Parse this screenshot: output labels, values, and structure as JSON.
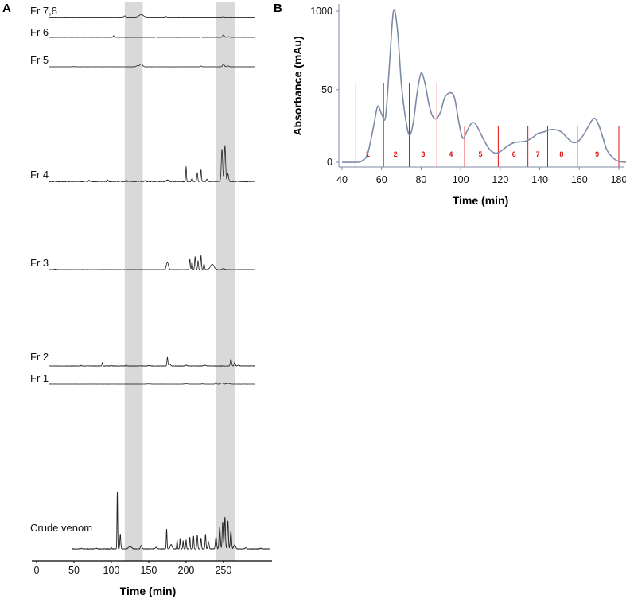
{
  "panels": {
    "a": {
      "letter": "A"
    },
    "b": {
      "letter": "B"
    }
  },
  "chart_data": [
    {
      "type": "line",
      "panel": "A",
      "xlabel": "Time (min)",
      "ylabel": "",
      "xlim": [
        0,
        315
      ],
      "xticks": [
        0,
        50,
        100,
        150,
        200,
        250
      ],
      "highlight_bands": [
        [
          118,
          142
        ],
        [
          240,
          265
        ]
      ],
      "series": [
        {
          "name": "Fr 7,8",
          "baseline": 0.5,
          "noise": 0.12,
          "peaks": [
            [
              118,
              1.5,
              1.2
            ],
            [
              140,
              3.0,
              3.0
            ],
            [
              173,
              0.8,
              1.0
            ],
            [
              250,
              0.6,
              1.0
            ]
          ]
        },
        {
          "name": "Fr 6",
          "baseline": 0,
          "noise": 0.1,
          "peaks": [
            [
              103,
              2.2,
              0.6
            ],
            [
              160,
              0.4,
              1.0
            ],
            [
              220,
              0.4,
              1.0
            ],
            [
              250,
              3.0,
              1.2
            ],
            [
              257,
              1.0,
              1.2
            ]
          ]
        },
        {
          "name": "Fr 5",
          "baseline": 0,
          "noise": 0.1,
          "peaks": [
            [
              50,
              0.3,
              1.2
            ],
            [
              135,
              1.5,
              1.5
            ],
            [
              140,
              3.5,
              1.8
            ],
            [
              220,
              1.0,
              0.8
            ],
            [
              250,
              3.2,
              1.2
            ],
            [
              256,
              1.2,
              1.2
            ]
          ]
        },
        {
          "name": "Fr 4",
          "baseline": 0,
          "noise": 0.45,
          "peaks": [
            [
              70,
              1.0,
              0.6
            ],
            [
              95,
              1.2,
              0.6
            ],
            [
              120,
              1.2,
              0.6
            ],
            [
              145,
              0.8,
              0.6
            ],
            [
              175,
              1.0,
              1.5
            ],
            [
              200,
              11.5,
              0.5
            ],
            [
              208,
              2.5,
              0.7
            ],
            [
              215,
              7.0,
              0.6
            ],
            [
              220,
              9.0,
              0.6
            ],
            [
              228,
              1.5,
              0.8
            ],
            [
              248,
              25.0,
              0.9
            ],
            [
              252,
              28.0,
              0.9
            ],
            [
              256,
              6.0,
              0.9
            ]
          ]
        },
        {
          "name": "Fr 3",
          "baseline": 0,
          "noise": 0.12,
          "peaks": [
            [
              25,
              0.4,
              1.5
            ],
            [
              175,
              6.5,
              1.3
            ],
            [
              205,
              9.0,
              0.6
            ],
            [
              208,
              7.0,
              0.6
            ],
            [
              212,
              11.0,
              0.6
            ],
            [
              216,
              7.5,
              0.6
            ],
            [
              220,
              12.0,
              0.6
            ],
            [
              224,
              5.0,
              0.7
            ],
            [
              235,
              4.5,
              2.4
            ],
            [
              250,
              0.8,
              1.5
            ]
          ]
        },
        {
          "name": "Fr 2",
          "baseline": 0,
          "noise": 0.25,
          "peaks": [
            [
              60,
              0.8,
              0.6
            ],
            [
              88,
              3.8,
              0.5
            ],
            [
              100,
              0.6,
              0.8
            ],
            [
              120,
              1.0,
              0.6
            ],
            [
              150,
              0.6,
              1.2
            ],
            [
              175,
              9.0,
              0.6
            ],
            [
              178,
              2.0,
              1.2
            ],
            [
              200,
              0.8,
              1.2
            ],
            [
              225,
              0.8,
              1.5
            ],
            [
              260,
              7.5,
              0.8
            ],
            [
              265,
              3.5,
              0.8
            ],
            [
              270,
              1.0,
              1.2
            ]
          ]
        },
        {
          "name": "Fr 1",
          "baseline": 0,
          "noise": 0.08,
          "peaks": [
            [
              150,
              0.3,
              2.0
            ],
            [
              200,
              0.4,
              2.0
            ],
            [
              222,
              0.4,
              1.0
            ],
            [
              240,
              2.6,
              0.8
            ],
            [
              248,
              1.5,
              1.5
            ],
            [
              256,
              1.0,
              2.0
            ]
          ]
        },
        {
          "name": "Crude venom",
          "baseline": 0,
          "noise": 0.25,
          "peaks": [
            [
              40,
              0.4,
              1.0
            ],
            [
              60,
              0.5,
              1.0
            ],
            [
              80,
              0.6,
              1.0
            ],
            [
              100,
              1.5,
              0.5
            ],
            [
              108,
              58.0,
              0.45
            ],
            [
              112,
              15.0,
              0.6
            ],
            [
              125,
              2.5,
              2.0
            ],
            [
              140,
              3.5,
              0.9
            ],
            [
              160,
              1.6,
              1.0
            ],
            [
              174,
              20.0,
              0.5
            ],
            [
              180,
              4.5,
              1.2
            ],
            [
              188,
              9.0,
              0.5
            ],
            [
              192,
              10.5,
              0.5
            ],
            [
              196,
              8.0,
              0.5
            ],
            [
              200,
              9.0,
              0.5
            ],
            [
              205,
              12.0,
              0.5
            ],
            [
              210,
              13.0,
              0.5
            ],
            [
              215,
              14.0,
              0.6
            ],
            [
              220,
              11.0,
              0.6
            ],
            [
              226,
              14.5,
              0.6
            ],
            [
              230,
              7.0,
              0.8
            ],
            [
              240,
              12.0,
              0.8
            ],
            [
              245,
              22.0,
              0.8
            ],
            [
              249,
              27.0,
              0.7
            ],
            [
              252,
              32.0,
              0.7
            ],
            [
              256,
              28.0,
              0.7
            ],
            [
              260,
              18.0,
              0.8
            ],
            [
              265,
              4.0,
              1.2
            ],
            [
              280,
              1.2,
              1.0
            ],
            [
              300,
              0.6,
              1.0
            ]
          ]
        }
      ],
      "series_gain": [
        1.0,
        1.0,
        1.0,
        1.6,
        1.5,
        1.2,
        1.0,
        1.25
      ],
      "series_offsets_units": [
        0,
        0,
        0,
        0,
        0,
        0,
        0,
        0
      ]
    },
    {
      "type": "line",
      "panel": "B",
      "xlabel": "Time (min)",
      "ylabel": "Absorbance (mAu)",
      "xlim": [
        40,
        185
      ],
      "ylim": [
        -12,
        1000
      ],
      "xticks": [
        40,
        60,
        80,
        100,
        120,
        140,
        160,
        180
      ],
      "yticks": [
        0,
        50,
        1000
      ],
      "ytick_positions": [
        0,
        480,
        1000
      ],
      "series": [
        {
          "name": "",
          "color": "#7d8aa6",
          "points": [
            [
              40,
              0
            ],
            [
              47,
              0
            ],
            [
              50,
              8
            ],
            [
              53,
              60
            ],
            [
              56,
              240
            ],
            [
              58,
              370
            ],
            [
              60,
              320
            ],
            [
              62,
              300
            ],
            [
              64,
              650
            ],
            [
              66,
              1000
            ],
            [
              68,
              880
            ],
            [
              70,
              520
            ],
            [
              72,
              300
            ],
            [
              74,
              180
            ],
            [
              76,
              260
            ],
            [
              78,
              460
            ],
            [
              80,
              590
            ],
            [
              82,
              520
            ],
            [
              84,
              380
            ],
            [
              86,
              300
            ],
            [
              88,
              290
            ],
            [
              90,
              340
            ],
            [
              92,
              430
            ],
            [
              95,
              460
            ],
            [
              97,
              420
            ],
            [
              99,
              270
            ],
            [
              101,
              160
            ],
            [
              103,
              200
            ],
            [
              105,
              250
            ],
            [
              107,
              260
            ],
            [
              109,
              220
            ],
            [
              112,
              140
            ],
            [
              115,
              80
            ],
            [
              118,
              60
            ],
            [
              121,
              80
            ],
            [
              124,
              110
            ],
            [
              127,
              130
            ],
            [
              130,
              135
            ],
            [
              133,
              140
            ],
            [
              136,
              160
            ],
            [
              139,
              190
            ],
            [
              142,
              200
            ],
            [
              145,
              215
            ],
            [
              148,
              215
            ],
            [
              151,
              200
            ],
            [
              154,
              160
            ],
            [
              157,
              130
            ],
            [
              160,
              145
            ],
            [
              163,
              200
            ],
            [
              166,
              270
            ],
            [
              168,
              290
            ],
            [
              170,
              240
            ],
            [
              172,
              160
            ],
            [
              174,
              80
            ],
            [
              177,
              30
            ],
            [
              180,
              5
            ],
            [
              185,
              0
            ]
          ]
        }
      ],
      "fraction_lines": [
        47,
        61,
        74,
        88,
        102,
        119,
        134,
        144,
        159,
        180
      ],
      "fractions": [
        {
          "label": "1",
          "x": 53
        },
        {
          "label": "2",
          "x": 67
        },
        {
          "label": "3",
          "x": 81
        },
        {
          "label": "4",
          "x": 95
        },
        {
          "label": "5",
          "x": 110
        },
        {
          "label": "6",
          "x": 127
        },
        {
          "label": "7",
          "x": 139
        },
        {
          "label": "8",
          "x": 151
        },
        {
          "label": "9",
          "x": 169
        }
      ],
      "fraction_line_color": "#e01010"
    }
  ]
}
